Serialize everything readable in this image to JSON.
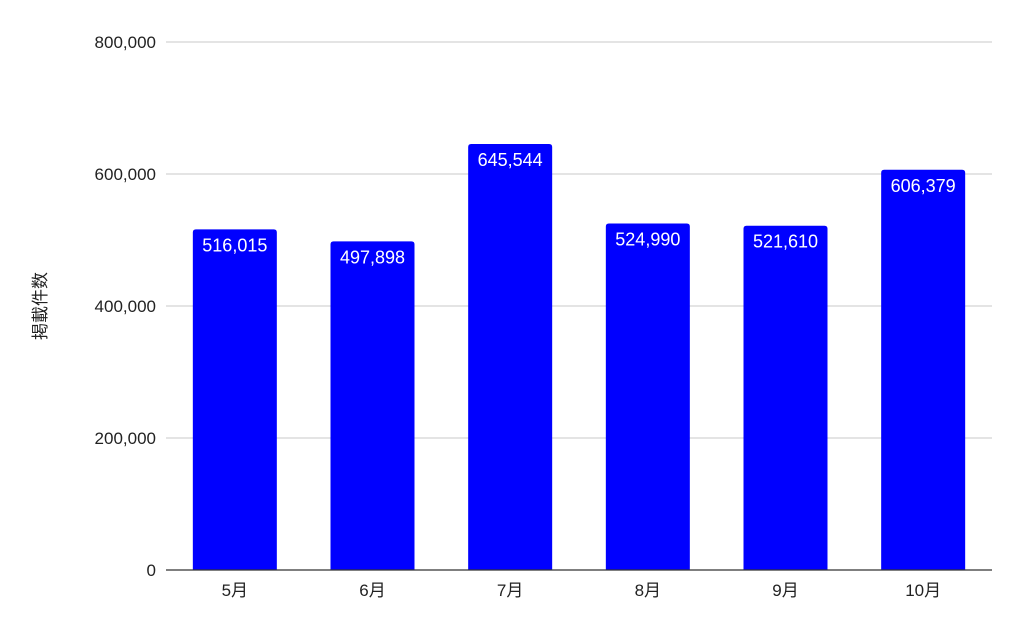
{
  "chart_data": {
    "type": "bar",
    "title": "",
    "xlabel": "",
    "ylabel": "掲載件数",
    "categories": [
      "5月",
      "6月",
      "7月",
      "8月",
      "9月",
      "10月"
    ],
    "values": [
      516015,
      497898,
      645544,
      524990,
      521610,
      606379
    ],
    "value_labels": [
      "516,015",
      "497,898",
      "645,544",
      "524,990",
      "521,610",
      "606,379"
    ],
    "ylim": [
      0,
      800000
    ],
    "yticks": [
      0,
      200000,
      400000,
      600000,
      800000
    ],
    "ytick_labels": [
      "0",
      "200,000",
      "400,000",
      "600,000",
      "800,000"
    ],
    "grid": true,
    "legend": "none",
    "bar_color": "#0000FF"
  }
}
